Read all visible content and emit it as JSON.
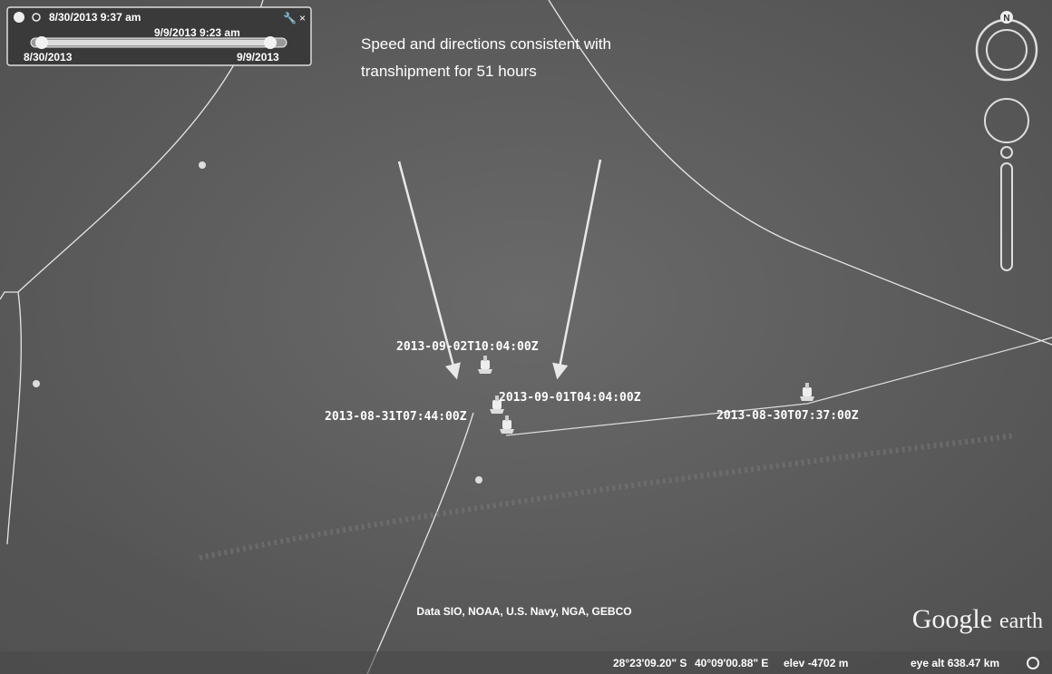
{
  "time_slider": {
    "current_start": "8/30/2013  9:37 am",
    "current_end": "9/9/2013  9:23 am",
    "range_start": "8/30/2013",
    "range_end": "9/9/2013"
  },
  "annotation": {
    "lines": [
      "Speed and directions consistent with",
      "transhipment for 51 hours"
    ]
  },
  "placemarks": [
    {
      "label": "2013-09-02T10:04:00Z"
    },
    {
      "label": "2013-09-01T04:04:00Z"
    },
    {
      "label": "2013-08-31T07:44:00Z"
    },
    {
      "label": "2013-08-30T07:37:00Z"
    }
  ],
  "attribution": "Data SIO, NOAA, U.S. Navy, NGA, GEBCO",
  "logo": {
    "brand": "Google",
    "product": "earth"
  },
  "status_bar": {
    "latitude": "28°23'09.20\" S",
    "longitude": "40°09'00.88\" E",
    "elevation": "elev -4702 m",
    "eye_altitude": "eye alt 638.47 km"
  },
  "compass": {
    "north": "N"
  }
}
